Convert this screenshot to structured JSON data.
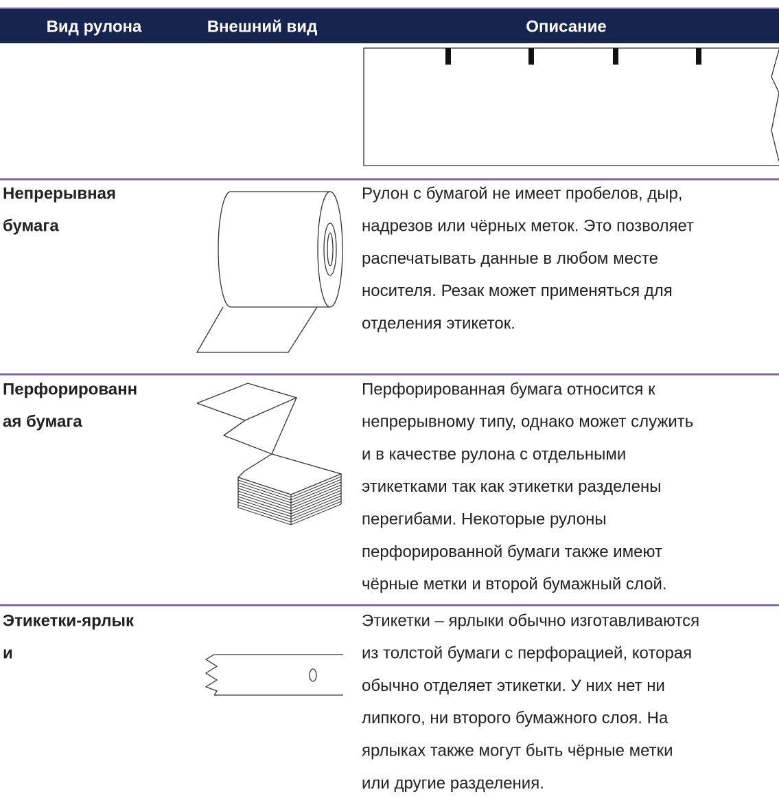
{
  "table": {
    "header": [
      "Вид рулона",
      "Внешний вид",
      "Описание"
    ],
    "rows": [
      {
        "name": [
          "Непрерывная",
          "бумага"
        ],
        "description": [
          "Рулон с бумагой не имеет пробелов, дыр,",
          "надрезов или чёрных меток. Это позволяет",
          "распечатывать данные в любом месте",
          "носителя. Резак может применяться для",
          "отделения этикеток."
        ]
      },
      {
        "name": [
          "Перфорированн",
          "ая бумага"
        ],
        "description": [
          "Перфорированная бумага относится к",
          "непрерывному типу, однако может служить",
          "и в качестве рулона с отдельными",
          "этикетками так как этикетки разделены",
          "перегибами. Некоторые рулоны",
          "перфорированной бумаги также имеют",
          "чёрные метки и второй бумажный слой."
        ]
      },
      {
        "name": [
          "Этикетки-ярлык",
          "и"
        ],
        "description": [
          "Этикетки – ярлыки обычно изготавливаются",
          "из толстой бумаги с перфорацией, которая",
          "обычно отделяет этикетки. У них нет ни",
          "липкого, ни второго бумажного слоя. На",
          "ярлыках также могут быть чёрные метки",
          "или другие разделения."
        ]
      }
    ]
  }
}
